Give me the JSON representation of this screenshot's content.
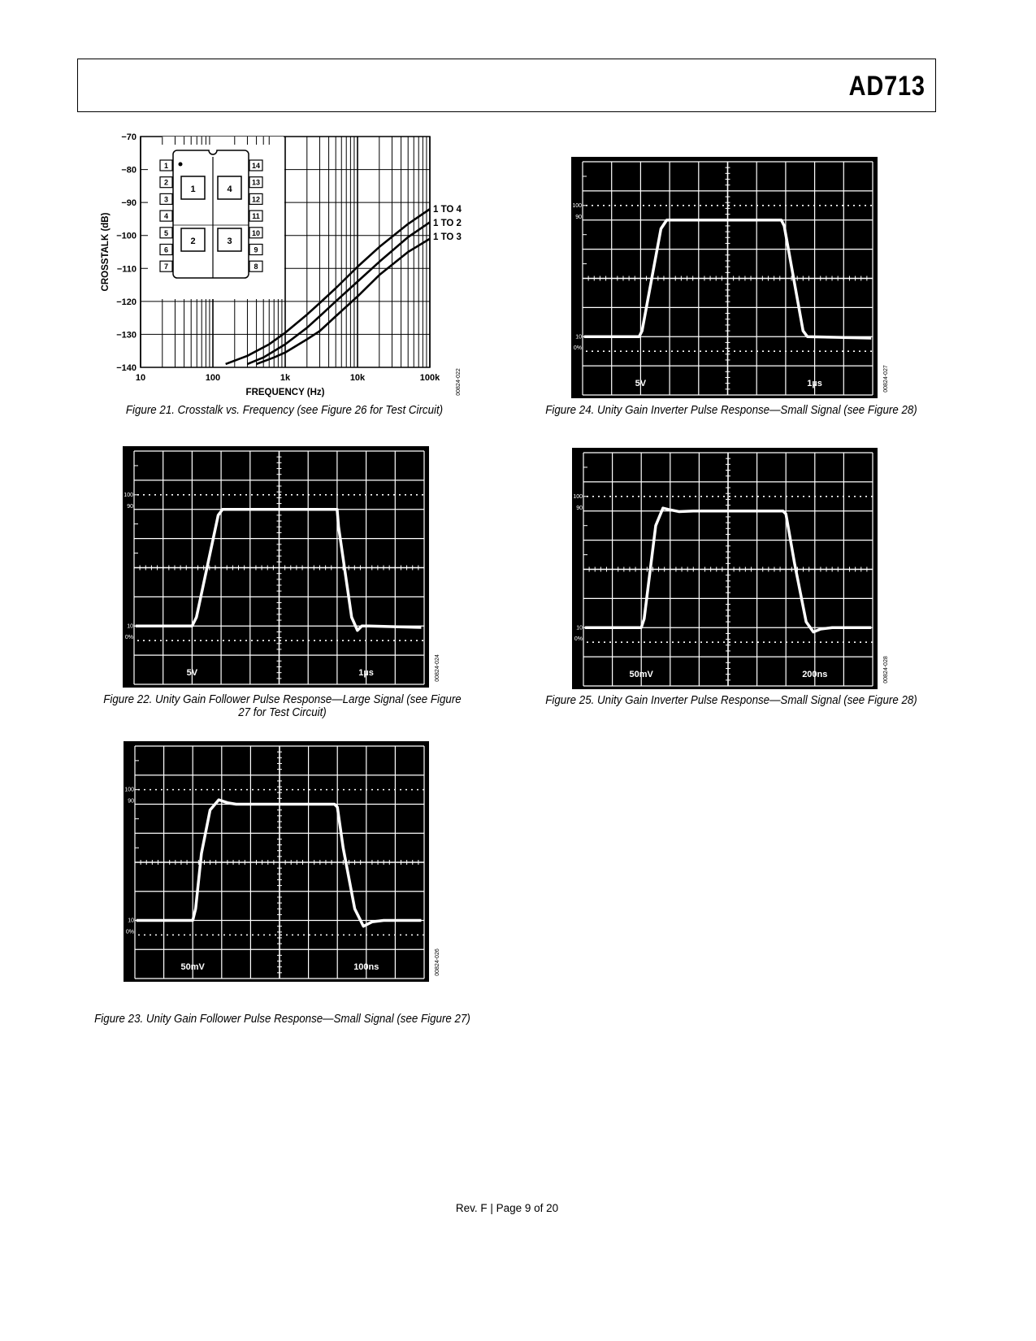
{
  "header": {
    "part_number": "AD713"
  },
  "footer": {
    "text": "Rev. F | Page 9 of 20"
  },
  "chart_data": [
    {
      "type": "line",
      "figure": "Figure 21",
      "caption": "Figure 21. Crosstalk vs. Frequency (see Figure 26 for Test Circuit)",
      "xlabel": "FREQUENCY (Hz)",
      "ylabel": "CROSSTALK (dB)",
      "xscale": "log",
      "xlim": [
        10,
        100000
      ],
      "ylim": [
        -140,
        -70
      ],
      "xticks": [
        {
          "v": 10,
          "label": "10"
        },
        {
          "v": 100,
          "label": "100"
        },
        {
          "v": 1000,
          "label": "1k"
        },
        {
          "v": 10000,
          "label": "10k"
        },
        {
          "v": 100000,
          "label": "100k"
        }
      ],
      "yticks": [
        {
          "v": -70,
          "label": "−70"
        },
        {
          "v": -80,
          "label": "−80"
        },
        {
          "v": -90,
          "label": "−90"
        },
        {
          "v": -100,
          "label": "−100"
        },
        {
          "v": -110,
          "label": "−110"
        },
        {
          "v": -120,
          "label": "−120"
        },
        {
          "v": -130,
          "label": "−130"
        },
        {
          "v": -140,
          "label": "−140"
        }
      ],
      "grid": true,
      "code": "00824-022",
      "series": [
        {
          "name": "1 TO 4",
          "x": [
            150,
            300,
            600,
            1000,
            2000,
            3000,
            5000,
            10000,
            20000,
            50000,
            100000
          ],
          "y": [
            -139,
            -136.5,
            -133,
            -129.5,
            -124,
            -120.5,
            -116,
            -109.5,
            -103.5,
            -96.5,
            -92
          ]
        },
        {
          "name": "1 TO 2",
          "x": [
            300,
            500,
            1000,
            2000,
            3000,
            5000,
            10000,
            20000,
            50000,
            100000
          ],
          "y": [
            -139,
            -137,
            -133,
            -128,
            -124.5,
            -120,
            -114,
            -108,
            -100.5,
            -96
          ]
        },
        {
          "name": "1 TO 3",
          "x": [
            400,
            700,
            1000,
            2000,
            3000,
            5000,
            10000,
            20000,
            50000,
            100000
          ],
          "y": [
            -139,
            -137,
            -135.5,
            -131.5,
            -129,
            -124.5,
            -118.5,
            -112,
            -105,
            -101
          ]
        }
      ],
      "inset": {
        "left_pins": [
          "1",
          "2",
          "3",
          "4",
          "5",
          "6",
          "7"
        ],
        "right_pins": [
          "14",
          "13",
          "12",
          "11",
          "10",
          "9",
          "8"
        ],
        "amplifiers": [
          "1",
          "4",
          "2",
          "3"
        ]
      }
    },
    {
      "type": "line",
      "figure": "Figure 22",
      "caption": "Figure 22. Unity Gain Follower Pulse Response—Large Signal (see Figure 27 for Test Circuit)",
      "level_labels": [
        "100",
        "90",
        "10",
        "0%"
      ],
      "volts_per_div": "5V",
      "time_per_div": "1µs",
      "code": "00824-024",
      "trace": {
        "t": [
          0.05,
          2.0,
          2.15,
          2.9,
          3.05,
          7.0,
          7.05,
          7.5,
          7.7,
          7.85,
          8.1,
          9.9
        ],
        "v": [
          -2,
          -2,
          -1.7,
          1.8,
          2,
          2,
          1.4,
          -1.7,
          -2.15,
          -2.0,
          -2.0,
          -2.05
        ]
      }
    },
    {
      "type": "line",
      "figure": "Figure 23",
      "caption": "Figure 23. Unity Gain Follower Pulse Response—Small Signal (see Figure 27)",
      "level_labels": [
        "100",
        "90",
        "10",
        "0%"
      ],
      "volts_per_div": "50mV",
      "time_per_div": "100ns",
      "code": "00824-026",
      "trace": {
        "t": [
          0.05,
          2.0,
          2.1,
          2.3,
          2.6,
          2.9,
          3.2,
          3.5,
          6.9,
          7.0,
          7.2,
          7.6,
          7.9,
          8.2,
          8.6,
          9.9
        ],
        "v": [
          -2,
          -2,
          -1.6,
          0.3,
          1.8,
          2.15,
          2.05,
          2,
          2,
          1.9,
          0.5,
          -1.6,
          -2.2,
          -2.05,
          -2.0,
          -2.0
        ]
      }
    },
    {
      "type": "line",
      "figure": "Figure 24",
      "caption": "Figure 24. Unity Gain Inverter Pulse Response—Small Signal (see Figure 28)",
      "level_labels": [
        "100",
        "90",
        "10",
        "0%"
      ],
      "volts_per_div": "5V",
      "time_per_div": "1µs",
      "code": "00824-027",
      "trace": {
        "t": [
          0.05,
          1.95,
          2.05,
          2.7,
          2.9,
          6.85,
          6.95,
          7.6,
          7.75,
          9.95
        ],
        "v": [
          -2,
          -2,
          -1.8,
          1.7,
          2,
          2,
          1.8,
          -1.8,
          -2,
          -2.05
        ]
      }
    },
    {
      "type": "line",
      "figure": "Figure 25",
      "caption": "Figure 25. Unity Gain Inverter Pulse Response—Small Signal (see Figure 28)",
      "level_labels": [
        "100",
        "90",
        "10",
        "0%"
      ],
      "volts_per_div": "50mV",
      "time_per_div": "200ns",
      "code": "00824-028",
      "trace": {
        "t": [
          0.05,
          2.0,
          2.1,
          2.5,
          2.75,
          2.95,
          3.3,
          3.8,
          6.9,
          7.0,
          7.3,
          7.7,
          7.95,
          8.2,
          8.6,
          9.95
        ],
        "v": [
          -2,
          -2,
          -1.7,
          1.5,
          2.1,
          2.05,
          1.98,
          2,
          2,
          1.9,
          0.2,
          -1.8,
          -2.15,
          -2.05,
          -2,
          -2
        ]
      }
    }
  ]
}
